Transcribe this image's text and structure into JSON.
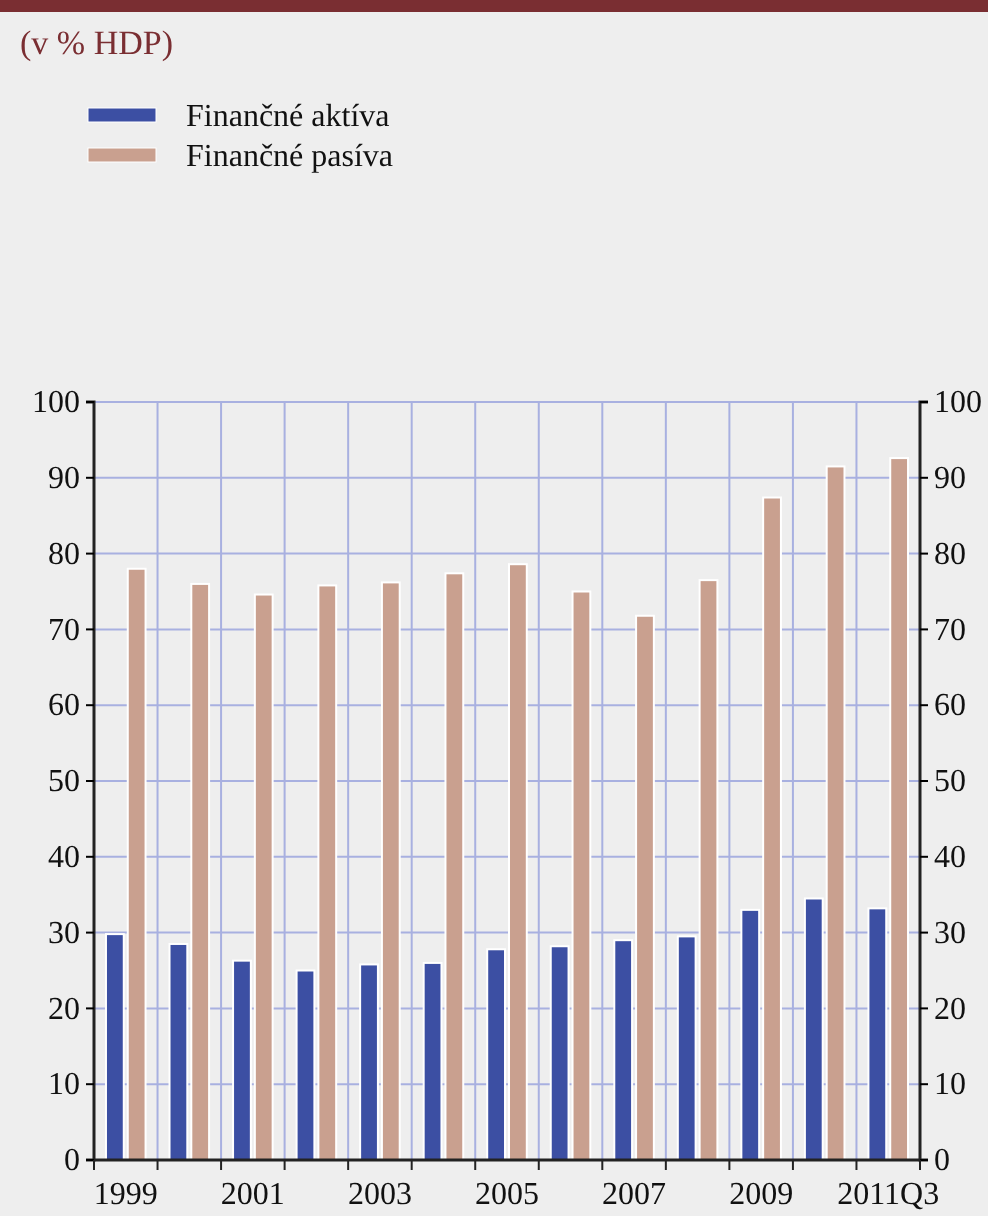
{
  "chart_data": {
    "type": "bar",
    "title": "(v % HDP)",
    "categories": [
      "1999",
      null,
      "2001",
      null,
      "2003",
      null,
      "2005",
      null,
      "2007",
      null,
      "2009",
      null,
      "2011Q3"
    ],
    "series": [
      {
        "name": "Finančné aktíva",
        "color": "#3c4fa3",
        "values": [
          29.8,
          28.5,
          26.3,
          25,
          25.8,
          26,
          27.8,
          28.2,
          29,
          29.5,
          33,
          34.5,
          33.2
        ]
      },
      {
        "name": "Finančné pasíva",
        "color": "#c9a08f",
        "values": [
          78,
          76,
          74.6,
          75.8,
          76.2,
          77.4,
          78.6,
          75,
          71.8,
          76.5,
          87.4,
          91.5,
          92.6
        ]
      }
    ],
    "ylim": [
      0,
      100
    ],
    "yticks": [
      0,
      10,
      20,
      30,
      40,
      50,
      60,
      70,
      80,
      90,
      100
    ],
    "y2lim": [
      0,
      100
    ],
    "y2ticks": [
      0,
      10,
      20,
      30,
      40,
      50,
      60,
      70,
      80,
      90,
      100
    ],
    "grid": true,
    "legend": "top left"
  }
}
